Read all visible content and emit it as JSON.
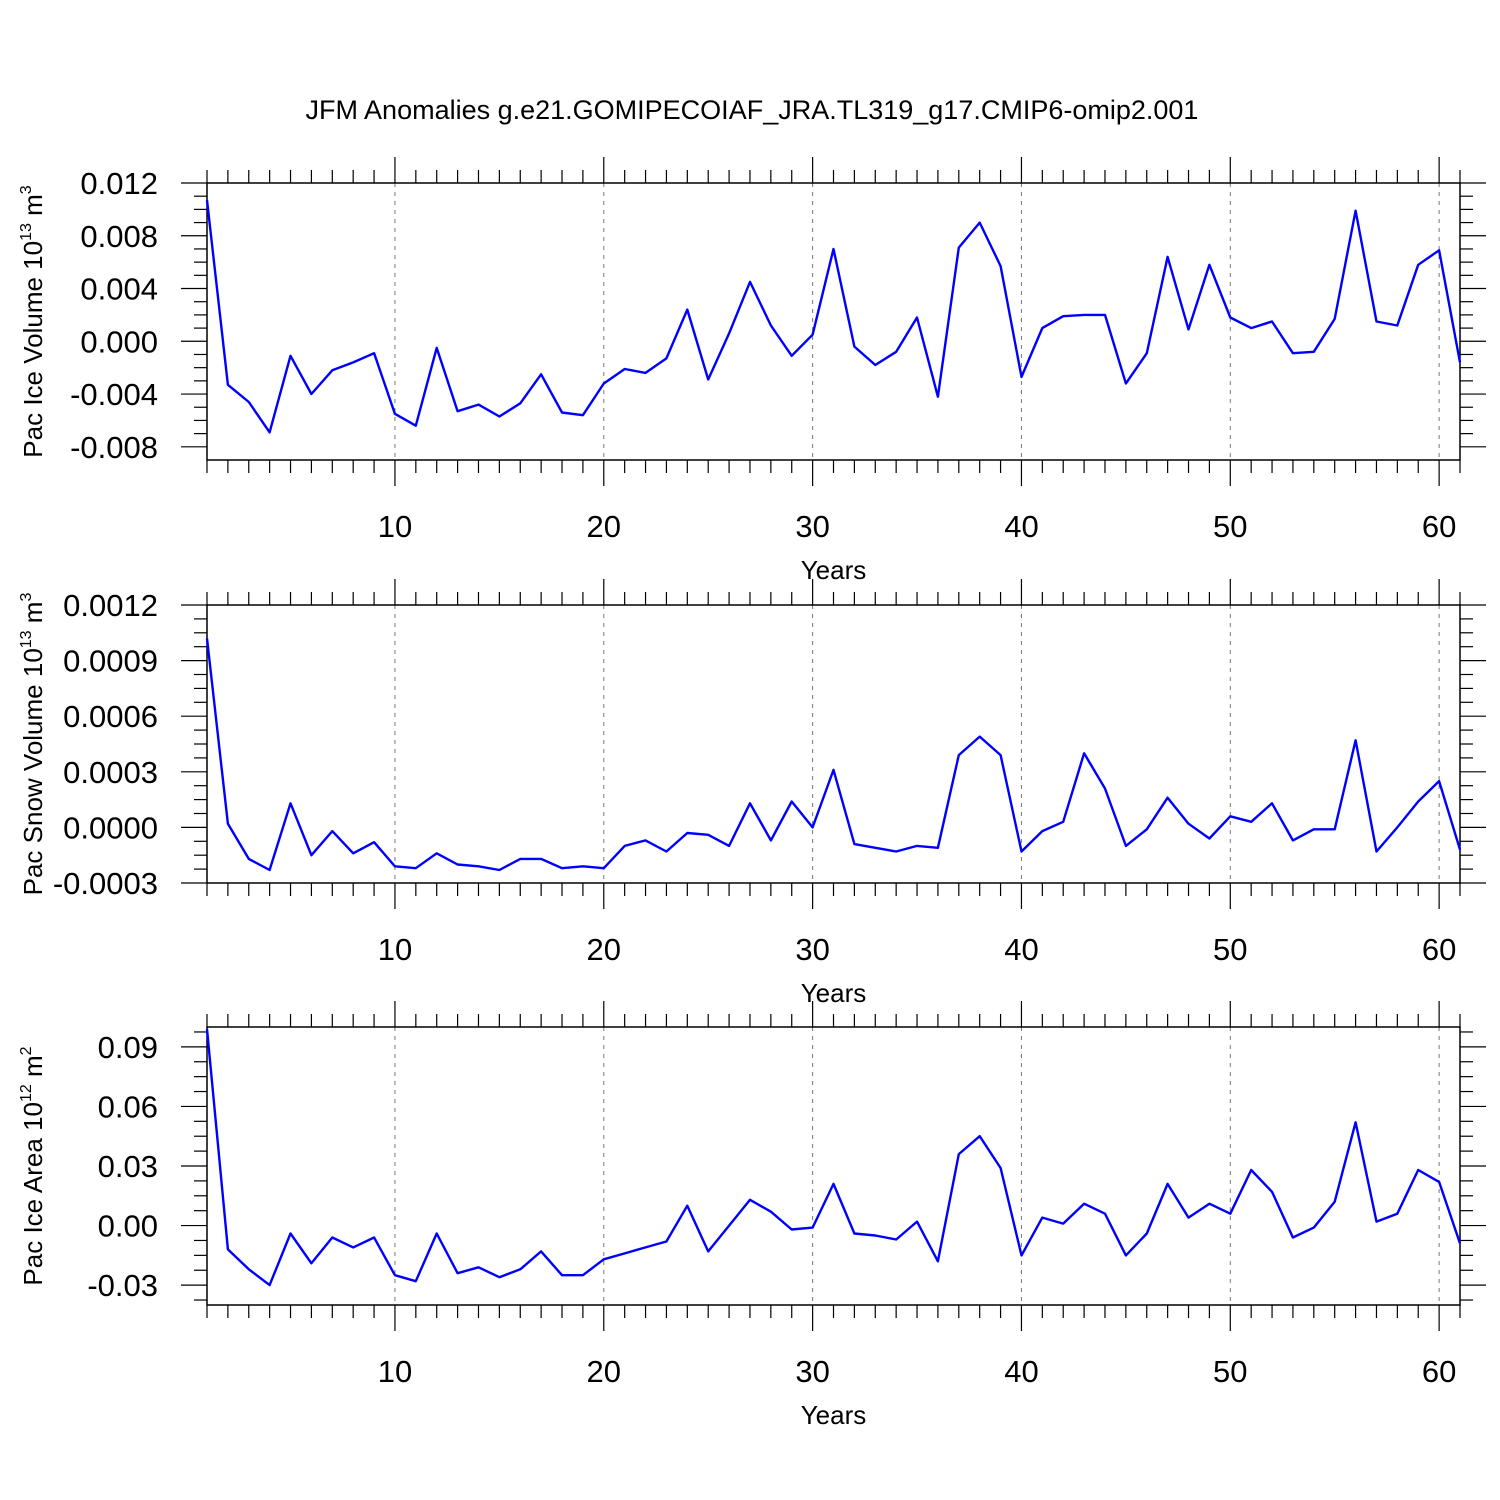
{
  "figure_title": "JFM Anomalies g.e21.GOMIPECOIAF_JRA.TL319_g17.CMIP6-omip2.001",
  "line_color": "#0000ff",
  "chart_data": [
    {
      "type": "line",
      "name": "pac-ice-volume",
      "title": "",
      "ylabel": {
        "main": "Pac Ice Volume 10",
        "exp": "13",
        "unit": " m",
        "unit_exp": "3"
      },
      "xlabel": "Years",
      "xlim": [
        1,
        61
      ],
      "x_ticks": [
        10,
        20,
        30,
        40,
        50,
        60
      ],
      "x_tick_labels": [
        "10",
        "20",
        "30",
        "40",
        "50",
        "60"
      ],
      "ylim": [
        -0.009,
        0.012
      ],
      "y_ticks": [
        -0.008,
        -0.004,
        0.0,
        0.004,
        0.008,
        0.012
      ],
      "y_tick_labels": [
        "-0.008",
        "-0.004",
        "0.000",
        "0.004",
        "0.008",
        "0.012"
      ],
      "x": [
        1,
        2,
        3,
        4,
        5,
        6,
        7,
        8,
        9,
        10,
        11,
        12,
        13,
        14,
        15,
        16,
        17,
        18,
        19,
        20,
        21,
        22,
        23,
        24,
        25,
        26,
        27,
        28,
        29,
        30,
        31,
        32,
        33,
        34,
        35,
        36,
        37,
        38,
        39,
        40,
        41,
        42,
        43,
        44,
        45,
        46,
        47,
        48,
        49,
        50,
        51,
        52,
        53,
        54,
        55,
        56,
        57,
        58,
        59,
        60,
        61
      ],
      "values": [
        0.0107,
        -0.0033,
        -0.0046,
        -0.0069,
        -0.0011,
        -0.004,
        -0.0022,
        -0.0016,
        -0.0009,
        -0.0055,
        -0.0064,
        -0.0005,
        -0.0053,
        -0.0048,
        -0.0057,
        -0.0047,
        -0.0025,
        -0.0054,
        -0.0056,
        -0.0032,
        -0.0021,
        -0.0024,
        -0.0013,
        0.0024,
        -0.0029,
        0.0006,
        0.0045,
        0.0012,
        -0.0011,
        0.0005,
        0.007,
        -0.0004,
        -0.0018,
        -0.0008,
        0.0018,
        -0.0042,
        0.0071,
        0.009,
        0.0057,
        -0.0027,
        0.001,
        0.0019,
        0.002,
        0.002,
        -0.0032,
        -0.0009,
        0.0064,
        0.0009,
        0.0058,
        0.0018,
        0.001,
        0.0015,
        -0.0009,
        -0.0008,
        0.0017,
        0.0099,
        0.0015,
        0.0012,
        0.0058,
        0.0069,
        -0.0016
      ]
    },
    {
      "type": "line",
      "name": "pac-snow-volume",
      "title": "",
      "ylabel": {
        "main": "Pac Snow Volume 10",
        "exp": "13",
        "unit": " m",
        "unit_exp": "3"
      },
      "xlabel": "Years",
      "xlim": [
        1,
        61
      ],
      "x_ticks": [
        10,
        20,
        30,
        40,
        50,
        60
      ],
      "x_tick_labels": [
        "10",
        "20",
        "30",
        "40",
        "50",
        "60"
      ],
      "ylim": [
        -0.0003,
        0.0012
      ],
      "y_ticks": [
        -0.0003,
        0.0,
        0.0003,
        0.0006,
        0.0009,
        0.0012
      ],
      "y_tick_labels": [
        "-0.0003",
        "0.0000",
        "0.0003",
        "0.0006",
        "0.0009",
        "0.0012"
      ],
      "x": [
        1,
        2,
        3,
        4,
        5,
        6,
        7,
        8,
        9,
        10,
        11,
        12,
        13,
        14,
        15,
        16,
        17,
        18,
        19,
        20,
        21,
        22,
        23,
        24,
        25,
        26,
        27,
        28,
        29,
        30,
        31,
        32,
        33,
        34,
        35,
        36,
        37,
        38,
        39,
        40,
        41,
        42,
        43,
        44,
        45,
        46,
        47,
        48,
        49,
        50,
        51,
        52,
        53,
        54,
        55,
        56,
        57,
        58,
        59,
        60,
        61
      ],
      "values": [
        0.00102,
        2e-05,
        -0.00017,
        -0.00023,
        0.00013,
        -0.00015,
        -2e-05,
        -0.00014,
        -8e-05,
        -0.00021,
        -0.00022,
        -0.00014,
        -0.0002,
        -0.00021,
        -0.00023,
        -0.00017,
        -0.00017,
        -0.00022,
        -0.00021,
        -0.00022,
        -0.0001,
        -7e-05,
        -0.00013,
        -3e-05,
        -4e-05,
        -0.0001,
        0.00013,
        -7e-05,
        0.00014,
        0.0,
        0.00031,
        -9e-05,
        -0.00011,
        -0.00013,
        -0.0001,
        -0.00011,
        0.00039,
        0.00049,
        0.00039,
        -0.00013,
        -2e-05,
        3e-05,
        0.0004,
        0.00021,
        -0.0001,
        -1e-05,
        0.00016,
        2e-05,
        -6e-05,
        6e-05,
        3e-05,
        0.00013,
        -7e-05,
        -1e-05,
        -1e-05,
        0.00047,
        -0.00013,
        0.0,
        0.00014,
        0.00025,
        -0.00012
      ]
    },
    {
      "type": "line",
      "name": "pac-ice-area",
      "title": "",
      "ylabel": {
        "main": "Pac Ice Area 10",
        "exp": "12",
        "unit": " m",
        "unit_exp": "2"
      },
      "xlabel": "Years",
      "xlim": [
        1,
        61
      ],
      "x_ticks": [
        10,
        20,
        30,
        40,
        50,
        60
      ],
      "x_tick_labels": [
        "10",
        "20",
        "30",
        "40",
        "50",
        "60"
      ],
      "ylim": [
        -0.04,
        0.1
      ],
      "y_ticks": [
        -0.03,
        0.0,
        0.03,
        0.06,
        0.09
      ],
      "y_tick_labels": [
        "-0.03",
        "0.00",
        "0.03",
        "0.06",
        "0.09"
      ],
      "x": [
        1,
        2,
        3,
        4,
        5,
        6,
        7,
        8,
        9,
        10,
        11,
        12,
        13,
        14,
        15,
        16,
        17,
        18,
        19,
        20,
        21,
        22,
        23,
        24,
        25,
        26,
        27,
        28,
        29,
        30,
        31,
        32,
        33,
        34,
        35,
        36,
        37,
        38,
        39,
        40,
        41,
        42,
        43,
        44,
        45,
        46,
        47,
        48,
        49,
        50,
        51,
        52,
        53,
        54,
        55,
        56,
        57,
        58,
        59,
        60,
        61
      ],
      "values": [
        0.099,
        -0.012,
        -0.022,
        -0.03,
        -0.004,
        -0.019,
        -0.006,
        -0.011,
        -0.006,
        -0.025,
        -0.028,
        -0.004,
        -0.024,
        -0.021,
        -0.026,
        -0.022,
        -0.013,
        -0.025,
        -0.025,
        -0.017,
        -0.014,
        -0.011,
        -0.008,
        0.01,
        -0.013,
        0.0,
        0.013,
        0.007,
        -0.002,
        -0.001,
        0.021,
        -0.004,
        -0.005,
        -0.007,
        0.002,
        -0.018,
        0.036,
        0.045,
        0.029,
        -0.015,
        0.004,
        0.001,
        0.011,
        0.006,
        -0.015,
        -0.004,
        0.021,
        0.004,
        0.011,
        0.006,
        0.028,
        0.017,
        -0.006,
        -0.001,
        0.012,
        0.052,
        0.002,
        0.006,
        0.028,
        0.022,
        -0.009
      ]
    }
  ]
}
